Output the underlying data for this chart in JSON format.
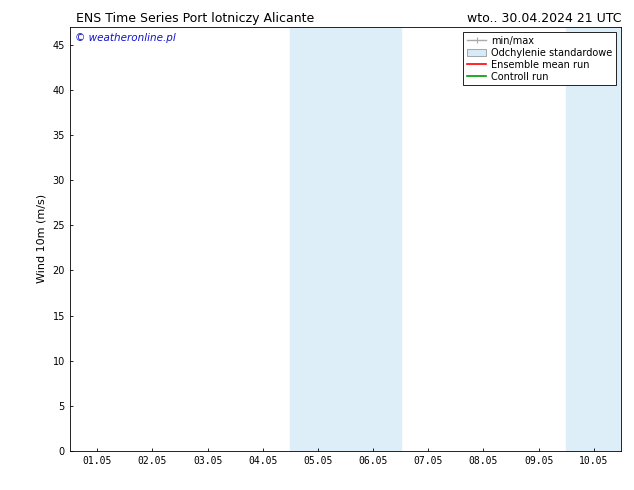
{
  "title_left": "ENS Time Series Port lotniczy Alicante",
  "title_right": "wto.. 30.04.2024 21 UTC",
  "ylabel": "Wind 10m (m/s)",
  "background_color": "#ffffff",
  "plot_bg_color": "#ffffff",
  "ylim": [
    0,
    47
  ],
  "yticks": [
    0,
    5,
    10,
    15,
    20,
    25,
    30,
    35,
    40,
    45
  ],
  "xtick_labels": [
    "01.05",
    "02.05",
    "03.05",
    "04.05",
    "05.05",
    "06.05",
    "07.05",
    "08.05",
    "09.05",
    "10.05"
  ],
  "xtick_positions": [
    0,
    1,
    2,
    3,
    4,
    5,
    6,
    7,
    8,
    9
  ],
  "xlim": [
    -0.5,
    9.5
  ],
  "shade_bands": [
    {
      "x_start": 3.5,
      "x_end": 5.5,
      "color": "#ddeef8"
    },
    {
      "x_start": 8.5,
      "x_end": 9.5,
      "color": "#ddeef8"
    }
  ],
  "legend_items": [
    {
      "label": "min/max",
      "color": "#aaaaaa",
      "style": "minmax"
    },
    {
      "label": "Odchylenie standardowe",
      "color": "#d6eaf8",
      "style": "bar"
    },
    {
      "label": "Ensemble mean run",
      "color": "#ff0000",
      "style": "line",
      "lw": 1.2
    },
    {
      "label": "Controll run",
      "color": "#009900",
      "style": "line",
      "lw": 1.2
    }
  ],
  "watermark_text": "© weatheronline.pl",
  "watermark_color": "#1111cc",
  "watermark_fontsize": 7.5,
  "title_fontsize": 9,
  "tick_fontsize": 7,
  "ylabel_fontsize": 8,
  "legend_fontsize": 7
}
